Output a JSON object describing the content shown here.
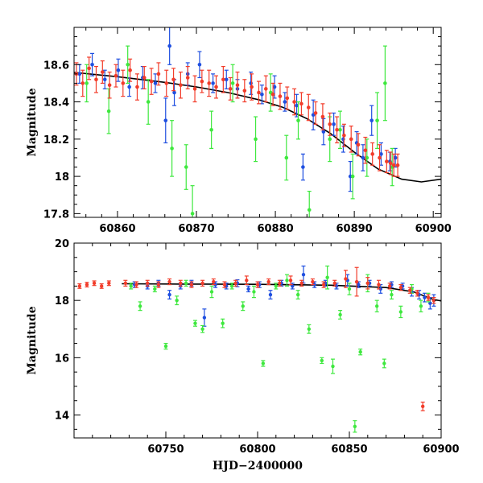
{
  "chart_data": [
    {
      "type": "scatter",
      "panel": "top",
      "title": "",
      "xlabel": "",
      "ylabel": "Magnitude",
      "xlim": [
        60854.5,
        60901
      ],
      "ylim": [
        18.8,
        17.78
      ],
      "y_inverted": true,
      "grid": false,
      "legend": "none",
      "x_ticks": [
        60860,
        60870,
        60880,
        60890,
        60900
      ],
      "y_ticks": [
        17.8,
        18,
        18.2,
        18.4,
        18.6
      ],
      "y_tick_labels": [
        "17.8",
        "18",
        "18.2",
        "18.4",
        "18.6"
      ],
      "colors": {
        "blue": "#1f4fe0",
        "green": "#3ee83e",
        "red": "#f23c2a",
        "model": "#000000"
      },
      "model_curve": {
        "x": [
          60854,
          60860,
          60866,
          60870,
          60874,
          60878,
          60881,
          60884,
          60887,
          60890,
          60893,
          60896,
          60898.5,
          60901
        ],
        "y": [
          18.56,
          18.535,
          18.505,
          18.48,
          18.45,
          18.41,
          18.37,
          18.31,
          18.23,
          18.13,
          18.04,
          17.985,
          17.97,
          17.985
        ]
      },
      "series": [
        {
          "color": "blue",
          "x": [
            60855.2,
            60856.8,
            60858.4,
            60860.1,
            60861.5,
            60863.2,
            60864.8,
            60866.1,
            60866.6,
            60867.2,
            60868.9,
            60870.4,
            60872.1,
            60873.8,
            60875.2,
            60876.9,
            60878.3,
            60879.9,
            60881.2,
            60882.7,
            60883.5,
            60884.8,
            60886.1,
            60887.4,
            60888.6,
            60889.5,
            60890.3,
            60891.1,
            60892.2,
            60893.4,
            60894.5,
            60895.2
          ],
          "y": [
            18.55,
            18.6,
            18.52,
            18.57,
            18.48,
            18.53,
            18.5,
            18.3,
            18.7,
            18.45,
            18.55,
            18.6,
            18.5,
            18.52,
            18.47,
            18.5,
            18.44,
            18.48,
            18.4,
            18.38,
            18.05,
            18.33,
            18.24,
            18.28,
            18.2,
            18.0,
            18.18,
            18.1,
            18.3,
            18.12,
            18.08,
            18.1
          ],
          "err": [
            0.05,
            0.06,
            0.05,
            0.06,
            0.05,
            0.06,
            0.05,
            0.12,
            0.1,
            0.07,
            0.06,
            0.07,
            0.05,
            0.05,
            0.05,
            0.06,
            0.05,
            0.06,
            0.05,
            0.06,
            0.07,
            0.08,
            0.07,
            0.06,
            0.07,
            0.08,
            0.06,
            0.07,
            0.08,
            0.06,
            0.05,
            0.05
          ]
        },
        {
          "color": "green",
          "x": [
            60856.1,
            60858.9,
            60861.3,
            60863.9,
            60866.9,
            60868.7,
            60869.5,
            60871.9,
            60874.6,
            60877.5,
            60879.4,
            60881.4,
            60882.9,
            60884.3,
            60886.9,
            60888.2,
            60889.8,
            60891.6,
            60892.9,
            60893.9,
            60894.8
          ],
          "y": [
            18.5,
            18.35,
            18.6,
            18.4,
            18.15,
            18.05,
            17.8,
            18.25,
            18.5,
            18.2,
            18.45,
            18.1,
            18.3,
            17.82,
            18.2,
            18.25,
            18.0,
            18.1,
            18.3,
            18.5,
            18.05
          ],
          "err": [
            0.1,
            0.12,
            0.1,
            0.12,
            0.15,
            0.12,
            0.15,
            0.1,
            0.1,
            0.12,
            0.1,
            0.12,
            0.1,
            0.1,
            0.12,
            0.1,
            0.12,
            0.1,
            0.15,
            0.2,
            0.1
          ]
        },
        {
          "color": "red",
          "x": [
            60854.8,
            60855.6,
            60856.4,
            60857.3,
            60858.1,
            60859.0,
            60859.8,
            60860.7,
            60861.6,
            60862.5,
            60863.4,
            60864.3,
            60865.2,
            60866.2,
            60867.1,
            60868.0,
            60868.9,
            60869.8,
            60870.7,
            60871.6,
            60872.5,
            60873.4,
            60874.3,
            60875.2,
            60876.1,
            60877.0,
            60877.9,
            60878.8,
            60879.7,
            60880.6,
            60881.5,
            60882.4,
            60883.3,
            60884.2,
            60885.1,
            60886.0,
            60886.9,
            60887.8,
            60888.7,
            60889.6,
            60890.5,
            60891.4,
            60892.3,
            60893.2,
            60894.1,
            60894.6,
            60895.0,
            60895.5
          ],
          "y": [
            18.55,
            18.5,
            18.58,
            18.52,
            18.56,
            18.49,
            18.54,
            18.5,
            18.57,
            18.48,
            18.53,
            18.51,
            18.55,
            18.5,
            18.52,
            18.49,
            18.53,
            18.47,
            18.51,
            18.5,
            18.48,
            18.52,
            18.47,
            18.49,
            18.46,
            18.48,
            18.45,
            18.47,
            18.44,
            18.43,
            18.42,
            18.4,
            18.39,
            18.37,
            18.34,
            18.32,
            18.28,
            18.25,
            18.22,
            18.2,
            18.17,
            18.14,
            18.12,
            18.1,
            18.08,
            18.07,
            18.06,
            18.06
          ],
          "err": [
            0.06,
            0.07,
            0.06,
            0.07,
            0.06,
            0.07,
            0.06,
            0.07,
            0.06,
            0.07,
            0.06,
            0.07,
            0.06,
            0.07,
            0.06,
            0.07,
            0.06,
            0.07,
            0.06,
            0.07,
            0.06,
            0.07,
            0.06,
            0.07,
            0.06,
            0.07,
            0.06,
            0.07,
            0.06,
            0.07,
            0.06,
            0.07,
            0.06,
            0.07,
            0.06,
            0.07,
            0.06,
            0.07,
            0.06,
            0.07,
            0.06,
            0.07,
            0.06,
            0.07,
            0.06,
            0.06,
            0.06,
            0.06
          ]
        }
      ]
    },
    {
      "type": "scatter",
      "panel": "bottom",
      "title": "",
      "xlabel": "HJD−2400000",
      "ylabel": "Magnitude",
      "xlim": [
        60700,
        60900
      ],
      "ylim": [
        20,
        13.2
      ],
      "y_inverted": true,
      "grid": false,
      "legend": "none",
      "x_ticks": [
        60750,
        60800,
        60850,
        60900
      ],
      "y_ticks": [
        14,
        16,
        18,
        20
      ],
      "y_tick_labels": [
        "14",
        "16",
        "18",
        "20"
      ],
      "colors": {
        "blue": "#1f4fe0",
        "green": "#3ee83e",
        "red": "#f23c2a",
        "model": "#000000"
      },
      "model_curve": {
        "x": [
          60726,
          60760,
          60800,
          60840,
          60870,
          60885,
          60895,
          60900
        ],
        "y": [
          18.58,
          18.57,
          18.56,
          18.53,
          18.45,
          18.3,
          18.05,
          17.98
        ]
      },
      "series": [
        {
          "color": "blue",
          "x": [
            60733,
            60740,
            60746,
            60752,
            60758,
            60764,
            60771,
            60777,
            60783,
            60789,
            60795,
            60801,
            60807,
            60813,
            60819,
            60825,
            60831,
            60837,
            60843,
            60849,
            60855,
            60861,
            60867,
            60873,
            60879,
            60884,
            60888,
            60891,
            60894,
            60896
          ],
          "y": [
            18.55,
            18.5,
            18.6,
            18.2,
            18.5,
            18.6,
            17.4,
            18.55,
            18.5,
            18.6,
            18.4,
            18.55,
            18.2,
            18.6,
            18.5,
            18.9,
            18.55,
            18.6,
            18.5,
            18.7,
            18.55,
            18.6,
            18.4,
            18.55,
            18.5,
            18.3,
            18.2,
            18.1,
            17.9,
            18.0
          ],
          "err": [
            0.1,
            0.1,
            0.1,
            0.15,
            0.1,
            0.1,
            0.3,
            0.1,
            0.1,
            0.12,
            0.1,
            0.1,
            0.15,
            0.1,
            0.1,
            0.3,
            0.1,
            0.1,
            0.1,
            0.2,
            0.1,
            0.1,
            0.15,
            0.1,
            0.1,
            0.15,
            0.15,
            0.15,
            0.2,
            0.2
          ]
        },
        {
          "color": "green",
          "x": [
            60731,
            60736,
            60744,
            60750,
            60756,
            60761,
            60766,
            60770,
            60775,
            60781,
            60786,
            60792,
            60798,
            60803,
            60810,
            60816,
            60822,
            60828,
            60835,
            60838,
            60841,
            60845,
            60850,
            60853,
            60856,
            60860,
            60865,
            60869,
            60873,
            60878,
            60884,
            60889,
            60893
          ],
          "y": [
            18.5,
            17.8,
            18.4,
            16.4,
            18.0,
            18.6,
            17.2,
            17.0,
            18.3,
            17.2,
            18.5,
            17.8,
            18.3,
            15.8,
            18.5,
            18.7,
            18.2,
            17.0,
            15.9,
            18.8,
            15.7,
            17.5,
            18.4,
            13.6,
            16.2,
            18.6,
            17.8,
            15.8,
            18.2,
            17.6,
            18.4,
            17.8,
            18.1
          ],
          "err": [
            0.1,
            0.15,
            0.1,
            0.1,
            0.15,
            0.1,
            0.1,
            0.12,
            0.2,
            0.15,
            0.1,
            0.15,
            0.2,
            0.1,
            0.1,
            0.2,
            0.15,
            0.15,
            0.1,
            0.4,
            0.25,
            0.15,
            0.2,
            0.2,
            0.1,
            0.3,
            0.2,
            0.15,
            0.15,
            0.2,
            0.15,
            0.2,
            0.15
          ]
        },
        {
          "color": "red",
          "x": [
            60703,
            60707,
            60711,
            60715,
            60719,
            60728,
            60734,
            60740,
            60746,
            60752,
            60758,
            60764,
            60770,
            60776,
            60782,
            60788,
            60794,
            60800,
            60806,
            60812,
            60818,
            60824,
            60830,
            60836,
            60842,
            60848,
            60854,
            60860,
            60866,
            60872,
            60878,
            60883,
            60887,
            60890,
            60893,
            60896
          ],
          "y": [
            18.5,
            18.55,
            18.6,
            18.5,
            18.6,
            18.6,
            18.55,
            18.6,
            18.55,
            18.65,
            18.6,
            18.55,
            18.6,
            18.65,
            18.55,
            18.6,
            18.7,
            18.55,
            18.65,
            18.6,
            18.7,
            18.6,
            18.65,
            18.55,
            18.6,
            18.75,
            18.65,
            18.6,
            18.55,
            18.5,
            18.45,
            18.35,
            18.25,
            14.3,
            18.1,
            18.0
          ],
          "err": [
            0.08,
            0.08,
            0.08,
            0.08,
            0.08,
            0.1,
            0.1,
            0.1,
            0.1,
            0.1,
            0.1,
            0.1,
            0.1,
            0.1,
            0.1,
            0.1,
            0.15,
            0.1,
            0.1,
            0.1,
            0.15,
            0.1,
            0.1,
            0.1,
            0.1,
            0.3,
            0.5,
            0.2,
            0.15,
            0.1,
            0.1,
            0.1,
            0.1,
            0.15,
            0.1,
            0.1
          ]
        }
      ]
    }
  ]
}
